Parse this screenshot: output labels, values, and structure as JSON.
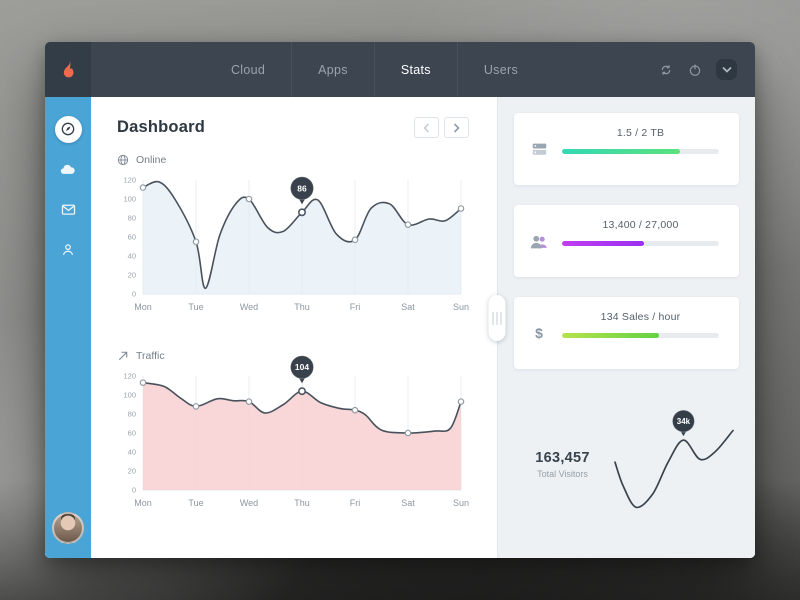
{
  "topbar": {
    "nav": [
      {
        "label": "Cloud",
        "active": false
      },
      {
        "label": "Apps",
        "active": false
      },
      {
        "label": "Stats",
        "active": true
      },
      {
        "label": "Users",
        "active": false
      }
    ],
    "icons": [
      "sync-icon",
      "power-icon",
      "chevron-down-icon"
    ]
  },
  "sidebar": {
    "items": [
      {
        "name": "dashboard",
        "icon": "compass-icon",
        "active": true
      },
      {
        "name": "cloud",
        "icon": "cloud-icon",
        "active": false
      },
      {
        "name": "messages",
        "icon": "mail-icon",
        "active": false
      },
      {
        "name": "profile",
        "icon": "user-icon",
        "active": false
      }
    ]
  },
  "main": {
    "title": "Dashboard"
  },
  "right_panel": {
    "cards": [
      {
        "value": "1.5 / 2 TB",
        "icon": "storage-icon",
        "progress": 0.75,
        "bar_colors": [
          "#34d7b5",
          "#5be27d"
        ]
      },
      {
        "value": "13,400 / 27,000",
        "icon": "users-icon",
        "progress": 0.52,
        "bar_colors": [
          "#c03df2",
          "#9a30ef"
        ]
      },
      {
        "value": "134 Sales / hour",
        "icon": "dollar-icon",
        "progress": 0.62,
        "bar_colors": [
          "#b6e24b",
          "#63d244"
        ]
      }
    ],
    "visitors": {
      "value": "163,457",
      "label": "Total Visitors"
    }
  },
  "chart_data": [
    {
      "type": "area",
      "title": "Online",
      "icon": "globe-icon",
      "x_ticks": [
        "Mon",
        "Tue",
        "Wed",
        "Thu",
        "Fri",
        "Sat",
        "Sun"
      ],
      "y_ticks": [
        0,
        20,
        40,
        60,
        80,
        100,
        120
      ],
      "ylim": [
        0,
        120
      ],
      "x": [
        0,
        0.3,
        0.6,
        1,
        1.18,
        1.45,
        1.75,
        2,
        2.35,
        2.65,
        3,
        3.3,
        3.65,
        4,
        4.3,
        4.65,
        5,
        5.4,
        5.7,
        6
      ],
      "values": [
        112,
        118,
        100,
        55,
        6,
        62,
        95,
        100,
        70,
        66,
        86,
        99,
        63,
        57,
        90,
        95,
        73,
        79,
        77,
        90
      ],
      "highlight": {
        "x": 3,
        "label": "86"
      },
      "line_color": "#49525c",
      "fill_color": "rgba(226,236,245,0.7)",
      "grid": true,
      "legend": "none"
    },
    {
      "type": "area",
      "title": "Traffic",
      "icon": "arrow-up-right-icon",
      "x_ticks": [
        "Mon",
        "Tue",
        "Wed",
        "Thu",
        "Fri",
        "Sat",
        "Sun"
      ],
      "y_ticks": [
        0,
        20,
        40,
        60,
        80,
        100,
        120
      ],
      "ylim": [
        0,
        120
      ],
      "x": [
        0,
        0.4,
        0.7,
        1,
        1.4,
        1.7,
        2,
        2.3,
        2.65,
        3,
        3.35,
        3.7,
        4,
        4.2,
        4.5,
        5,
        5.5,
        5.8,
        6
      ],
      "values": [
        113,
        109,
        97,
        88,
        96,
        94,
        93,
        81,
        90,
        104,
        92,
        86,
        84,
        79,
        63,
        60,
        62,
        65,
        93
      ],
      "highlight": {
        "x": 3,
        "label": "104"
      },
      "line_color": "#49525c",
      "fill_color": "rgba(247,205,208,0.8)",
      "grid": true,
      "legend": "none"
    },
    {
      "type": "line",
      "title": "Total Visitors trend",
      "x": [
        0,
        0.07,
        0.18,
        0.32,
        0.45,
        0.58,
        0.72,
        0.85,
        1
      ],
      "values": [
        55,
        30,
        8,
        22,
        55,
        78,
        58,
        66,
        88
      ],
      "badge": {
        "label": "34k",
        "index": 5
      },
      "line_color": "#3a444e"
    }
  ]
}
